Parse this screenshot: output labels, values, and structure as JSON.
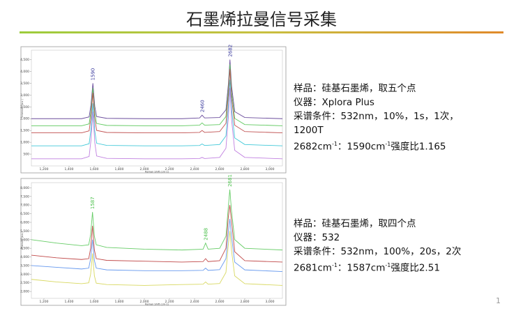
{
  "title": "石墨烯拉曼信号采集",
  "page_number": "1",
  "chart_data": [
    {
      "type": "line",
      "ylabel": "Intensity (a.u.)",
      "xlabel": "Raman Shift (cm-1)",
      "x": [
        1100,
        1300,
        1500,
        1560,
        1575,
        1590,
        1605,
        1620,
        1700,
        2000,
        2300,
        2440,
        2460,
        2480,
        2600,
        2650,
        2670,
        2682,
        2695,
        2720,
        2800,
        3100
      ],
      "series": [
        {
          "color": "#6a4c9c",
          "values": [
            2000,
            2000,
            2000,
            2075,
            2600,
            3500,
            2525,
            2090,
            2015,
            2000,
            2000,
            2030,
            2150,
            2030,
            2050,
            2375,
            3500,
            4500,
            3375,
            2300,
            2050,
            2000
          ]
        },
        {
          "color": "#5fc95f",
          "values": [
            1700,
            1700,
            1700,
            1780,
            2340,
            3300,
            2260,
            1796,
            1716,
            1700,
            1700,
            1724,
            1820,
            1724,
            1752,
            2090,
            3260,
            4300,
            3130,
            2012,
            1752,
            1700
          ]
        },
        {
          "color": "#c05050",
          "values": [
            1400,
            1400,
            1400,
            1485,
            2080,
            3100,
            1995,
            1502,
            1417,
            1400,
            1400,
            1420,
            1500,
            1420,
            1454,
            1805,
            3020,
            4100,
            2885,
            1724,
            1454,
            1400
          ]
        },
        {
          "color": "#40c8d8",
          "values": [
            850,
            850,
            850,
            940,
            1570,
            2650,
            1480,
            958,
            868,
            850,
            850,
            866,
            930,
            866,
            906,
            1270,
            2530,
            3650,
            2390,
            1186,
            906,
            850
          ]
        },
        {
          "color": "#c080e0",
          "values": [
            300,
            300,
            300,
            400,
            1100,
            2300,
            1000,
            420,
            320,
            300,
            300,
            312,
            360,
            312,
            360,
            750,
            2100,
            3300,
            1950,
            660,
            360,
            300
          ]
        }
      ],
      "annotations": [
        {
          "text": "1590",
          "x": 1590
        },
        {
          "text": "2460",
          "x": 2460
        },
        {
          "text": "2682",
          "x": 2682
        }
      ],
      "annotation_color": "#3b3b9e",
      "xlim": [
        1100,
        3100
      ],
      "ylim": [
        0,
        4900
      ],
      "xticks": [
        {
          "value": 1200,
          "label": "1,200"
        },
        {
          "value": 1400,
          "label": "1,400"
        },
        {
          "value": 1600,
          "label": "1,600"
        },
        {
          "value": 1800,
          "label": "1,800"
        },
        {
          "value": 2000,
          "label": "2,000"
        },
        {
          "value": 2200,
          "label": "2,200"
        },
        {
          "value": 2400,
          "label": "2,400"
        },
        {
          "value": 2600,
          "label": "2,600"
        },
        {
          "value": 2800,
          "label": "2,800"
        },
        {
          "value": 3000,
          "label": "3,000"
        }
      ],
      "yticks": [
        500,
        {
          "value": 1000,
          "label": "1,000"
        },
        {
          "value": 1500,
          "label": "1,500"
        },
        {
          "value": 2000,
          "label": "2,000"
        },
        {
          "value": 2500,
          "label": "2,500"
        },
        {
          "value": 3000,
          "label": "3,000"
        },
        {
          "value": 3500,
          "label": "3,500"
        },
        {
          "value": 4000,
          "label": "4,000"
        },
        {
          "value": 4500,
          "label": "4,500"
        }
      ]
    },
    {
      "type": "line",
      "ylabel": "Intensity (a.u.)",
      "xlabel": "Raman Shift (cm-1)",
      "x": [
        1100,
        1300,
        1500,
        1557,
        1572,
        1587,
        1602,
        1617,
        1700,
        2000,
        2300,
        2468,
        2488,
        2508,
        2600,
        2650,
        2669,
        2681,
        2694,
        2720,
        2800,
        3100
      ],
      "series": [
        {
          "color": "#66cc66",
          "values": [
            5000,
            4800,
            4650,
            4700,
            5300,
            6600,
            5200,
            4700,
            4550,
            4450,
            4400,
            4450,
            4800,
            4450,
            4500,
            5200,
            6900,
            7900,
            6700,
            5000,
            4500,
            4400
          ]
        },
        {
          "color": "#c04848",
          "values": [
            4100,
            3950,
            3850,
            3900,
            4500,
            5800,
            4400,
            3900,
            3800,
            3750,
            3700,
            3730,
            3900,
            3730,
            3780,
            4500,
            6300,
            7000,
            6100,
            4300,
            3780,
            3700
          ]
        },
        {
          "color": "#6699ee",
          "values": [
            3500,
            3400,
            3300,
            3350,
            3900,
            5000,
            3800,
            3350,
            3250,
            3200,
            3200,
            3220,
            3350,
            3220,
            3260,
            3900,
            5400,
            6200,
            5200,
            3700,
            3250,
            3150
          ]
        },
        {
          "color": "#d8d860",
          "values": [
            2700,
            2550,
            2450,
            2500,
            3000,
            4200,
            2900,
            2480,
            2400,
            2350,
            2400,
            2420,
            2550,
            2420,
            2460,
            3100,
            4700,
            5500,
            4400,
            2900,
            2450,
            2350
          ]
        }
      ],
      "annotations": [
        {
          "text": "1587",
          "x": 1587
        },
        {
          "text": "2488",
          "x": 2488
        },
        {
          "text": "2681",
          "x": 2681
        }
      ],
      "annotation_color": "#4cc04c",
      "xlim": [
        1100,
        3100
      ],
      "ylim": [
        1600,
        8300
      ],
      "xticks": [
        {
          "value": 1200,
          "label": "1,200"
        },
        {
          "value": 1400,
          "label": "1,400"
        },
        {
          "value": 1600,
          "label": "1,600"
        },
        {
          "value": 1800,
          "label": "1,800"
        },
        {
          "value": 2000,
          "label": "2,000"
        },
        {
          "value": 2200,
          "label": "2,200"
        },
        {
          "value": 2400,
          "label": "2,400"
        },
        {
          "value": 2600,
          "label": "2,600"
        },
        {
          "value": 2800,
          "label": "2,800"
        },
        {
          "value": 3000,
          "label": "3,000"
        }
      ],
      "yticks": [
        {
          "value": 2000,
          "label": "2,000"
        },
        {
          "value": 2500,
          "label": "2,500"
        },
        {
          "value": 3000,
          "label": "3,000"
        },
        {
          "value": 3500,
          "label": "3,500"
        },
        {
          "value": 4000,
          "label": "4,000"
        },
        {
          "value": 4500,
          "label": "4,500"
        },
        {
          "value": 5000,
          "label": "5,000"
        },
        {
          "value": 5500,
          "label": "5,500"
        },
        {
          "value": 6000,
          "label": "6,000"
        },
        {
          "value": 6500,
          "label": "6,500"
        },
        {
          "value": 7000,
          "label": "7,000"
        },
        {
          "value": 7500,
          "label": "7,500"
        },
        {
          "value": 8000,
          "label": "8,000"
        }
      ]
    }
  ],
  "notes": [
    {
      "lines": [
        "样品：硅基石墨烯，取五个点",
        "仪器：Xplora Plus",
        "采谱条件：532nm，10%，1s，1次，",
        "1200T"
      ],
      "ratio": [
        "2682cm",
        "-1",
        "：1590cm",
        "-1",
        "强度比1.165"
      ]
    },
    {
      "lines": [
        "样品：硅基石墨烯，取四个点",
        "仪器：532",
        "采谱条件：532nm，100%，20s，2次"
      ],
      "ratio": [
        "2681cm",
        "-1",
        "：1587cm",
        "-1",
        "强度比2.51"
      ]
    }
  ]
}
